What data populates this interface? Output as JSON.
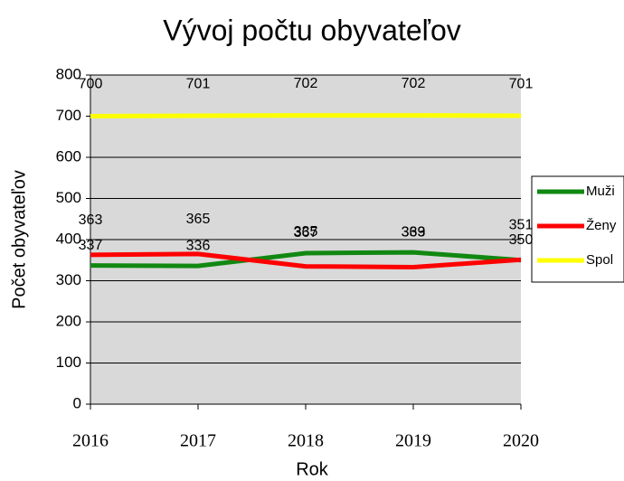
{
  "chart_data": {
    "type": "line",
    "title": "Vývoj počtu obyvateľov",
    "xlabel": "Rok",
    "ylabel": "Počet obyvateľov",
    "categories": [
      "2016",
      "2017",
      "2018",
      "2019",
      "2020"
    ],
    "series": [
      {
        "name": "Muži",
        "color": "#118811",
        "values": [
          337,
          336,
          367,
          369,
          350
        ]
      },
      {
        "name": "Ženy",
        "color": "#ff0000",
        "values": [
          363,
          365,
          335,
          333,
          351
        ]
      },
      {
        "name": "Spol",
        "color": "#ffff00",
        "values": [
          700,
          701,
          702,
          702,
          701
        ]
      }
    ],
    "ylim": [
      0,
      800
    ],
    "yticks": [
      0,
      100,
      200,
      300,
      400,
      500,
      600,
      700,
      800
    ],
    "grid": true,
    "legend": "right"
  }
}
